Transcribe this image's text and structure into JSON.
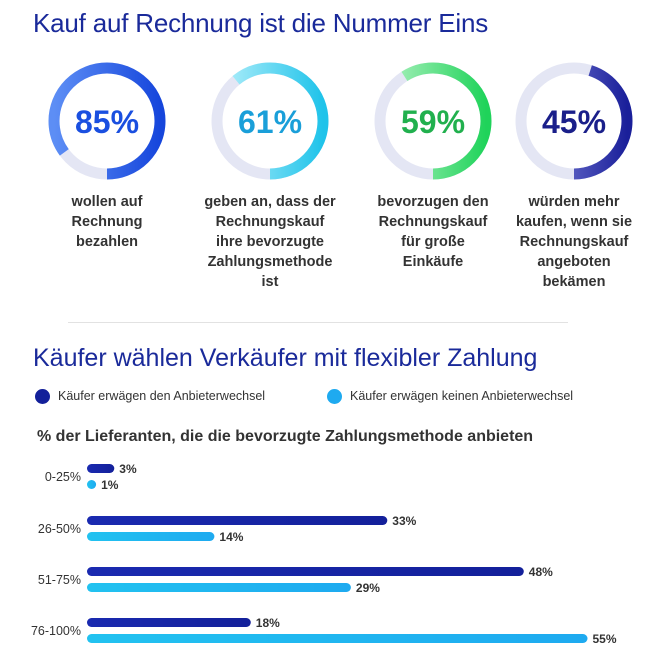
{
  "section1": {
    "title": "Kauf auf Rechnung ist die Nummer Eins",
    "stats": [
      {
        "value": 85,
        "label": "85%",
        "caption": [
          "wollen auf",
          "Rechnung",
          "bezahlen"
        ],
        "color_start": "#5d8ef5",
        "color_end": "#1646dc",
        "text_color": "#1a4fe0"
      },
      {
        "value": 61,
        "label": "61%",
        "caption": [
          "geben an, dass der",
          "Rechnungskauf",
          "ihre bevorzugte",
          "Zahlungsmethode",
          "ist"
        ],
        "color_start": "#b6f0fb",
        "color_end": "#1fc3ea",
        "text_color": "#1a9fd9"
      },
      {
        "value": 59,
        "label": "59%",
        "caption": [
          "bevorzugen den",
          "Rechnungskauf",
          "für große",
          "Einkäufe"
        ],
        "color_start": "#b4f3c4",
        "color_end": "#1fd35a",
        "text_color": "#21b04e"
      },
      {
        "value": 45,
        "label": "45%",
        "caption": [
          "würden mehr",
          "kaufen, wenn sie",
          "Rechnungskauf",
          "angeboten",
          "bekämen"
        ],
        "color_start": "#8a8fe0",
        "color_end": "#1a1f9a",
        "text_color": "#1a1f8a"
      }
    ],
    "track_color": "#e4e6f4"
  },
  "section2": {
    "title": "Käufer wählen Verkäufer mit flexibler Zahlung",
    "legend": [
      {
        "label": "Käufer erwägen den Anbieterwechsel",
        "color": "#13209a"
      },
      {
        "label": "Käufer erwägen keinen Anbieterwechsel",
        "color": "#1eaaf0"
      }
    ],
    "subtitle": "% der Lieferanten, die die bevorzugte Zahlungsmethode anbieten"
  },
  "chart_data": {
    "type": "bar",
    "orientation": "horizontal",
    "categories": [
      "0-25%",
      "26-50%",
      "51-75%",
      "76-100%"
    ],
    "series": [
      {
        "name": "Käufer erwägen den Anbieterwechsel",
        "values": [
          3,
          33,
          48,
          18
        ],
        "labels": [
          "3%",
          "33%",
          "48%",
          "18%"
        ],
        "color": "#13209a"
      },
      {
        "name": "Käufer erwägen keinen Anbieterwechsel",
        "values": [
          1,
          14,
          29,
          55
        ],
        "labels": [
          "1%",
          "14%",
          "29%",
          "55%"
        ],
        "color": "#1eaaf0"
      }
    ],
    "xlim": [
      0,
      55
    ],
    "grid": false
  }
}
